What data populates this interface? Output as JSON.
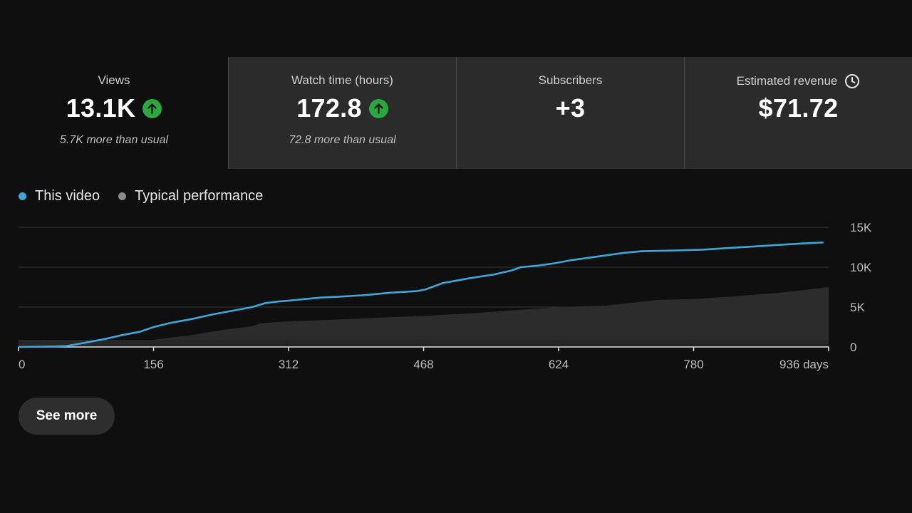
{
  "cards": [
    {
      "label": "Views",
      "value": "13.1K",
      "note": "5.7K more than usual",
      "trend": "up",
      "selected": true
    },
    {
      "label": "Watch time (hours)",
      "value": "172.8",
      "note": "72.8 more than usual",
      "trend": "up",
      "selected": false
    },
    {
      "label": "Subscribers",
      "value": "+3",
      "note": "",
      "trend": "none",
      "selected": false
    },
    {
      "label": "Estimated revenue",
      "value": "$71.72",
      "note": "",
      "trend": "none",
      "selected": false,
      "icon": "clock-icon"
    }
  ],
  "legend": [
    {
      "label": "This video",
      "color": "#3ea6d8"
    },
    {
      "label": "Typical performance",
      "color": "#8a8a8a"
    }
  ],
  "see_more_label": "See more",
  "colors": {
    "background": "#0f0f0f",
    "card_bg": "#2b2b2b",
    "accent_line": "#3ea6d8",
    "typical_fill": "#2c2c2c",
    "trend_up": "#2ba640"
  },
  "chart_data": {
    "type": "line",
    "xlabel": "",
    "ylabel": "",
    "x_unit_label": "days",
    "xlim": [
      0,
      936
    ],
    "ylim": [
      0,
      15000
    ],
    "x_ticks": [
      0,
      156,
      312,
      468,
      624,
      780,
      936
    ],
    "x_tick_labels": [
      "0",
      "156",
      "312",
      "468",
      "624",
      "780",
      "936 days"
    ],
    "y_ticks": [
      0,
      5000,
      10000,
      15000
    ],
    "y_tick_labels": [
      "0",
      "5K",
      "10K",
      "15K"
    ],
    "grid": true,
    "series": [
      {
        "name": "This video",
        "kind": "line",
        "color": "#3ea6d8",
        "x": [
          0,
          20,
          40,
          55,
          65,
          80,
          100,
          120,
          140,
          156,
          175,
          200,
          225,
          250,
          270,
          285,
          300,
          312,
          330,
          350,
          370,
          400,
          430,
          460,
          470,
          490,
          520,
          550,
          570,
          580,
          600,
          620,
          640,
          660,
          700,
          720,
          760,
          790,
          820,
          850,
          880,
          910,
          930
        ],
        "y": [
          0,
          30,
          60,
          120,
          300,
          600,
          1000,
          1500,
          1900,
          2500,
          3000,
          3500,
          4100,
          4600,
          5000,
          5500,
          5700,
          5800,
          6000,
          6200,
          6300,
          6500,
          6800,
          7000,
          7200,
          8000,
          8600,
          9100,
          9600,
          10000,
          10200,
          10500,
          10900,
          11200,
          11800,
          12000,
          12100,
          12200,
          12400,
          12600,
          12800,
          13000,
          13100
        ]
      },
      {
        "name": "Typical performance",
        "kind": "area",
        "color": "#2c2c2c",
        "x": [
          0,
          50,
          100,
          140,
          156,
          200,
          240,
          270,
          280,
          312,
          360,
          400,
          468,
          520,
          560,
          624,
          680,
          740,
          780,
          820,
          880,
          936
        ],
        "y": [
          0,
          100,
          300,
          600,
          900,
          1500,
          2200,
          2600,
          3000,
          3200,
          3400,
          3600,
          3900,
          4200,
          4500,
          5000,
          5200,
          5900,
          6000,
          6300,
          6800,
          7500
        ]
      }
    ]
  }
}
